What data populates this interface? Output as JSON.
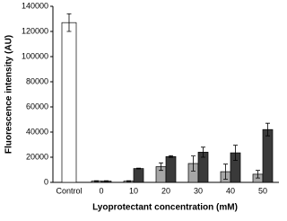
{
  "chart_data": {
    "type": "bar",
    "y_label": "Fluorescence intensity (AU)",
    "x_label": "Lyoprotectant concentration (mM)",
    "categories": [
      "Control",
      "0",
      "10",
      "20",
      "30",
      "40",
      "50"
    ],
    "series": [
      {
        "color": "#ffffff",
        "values": [
          127000,
          null,
          null,
          null,
          null,
          null,
          null
        ],
        "errors": [
          7000,
          null,
          null,
          null,
          null,
          null,
          null
        ]
      },
      {
        "color": "#a6a6a6",
        "values": [
          null,
          1000,
          1000,
          12500,
          15000,
          8500,
          6500
        ],
        "errors": [
          null,
          300,
          300,
          3000,
          6000,
          6000,
          3000
        ]
      },
      {
        "color": "#3a3a3a",
        "values": [
          null,
          1000,
          11000,
          20500,
          24000,
          23500,
          42000
        ],
        "errors": [
          null,
          300,
          300,
          700,
          4000,
          6000,
          5000
        ]
      }
    ],
    "ylim": [
      0,
      140000
    ],
    "yticks": [
      0,
      20000,
      40000,
      60000,
      80000,
      100000,
      120000,
      140000
    ]
  }
}
